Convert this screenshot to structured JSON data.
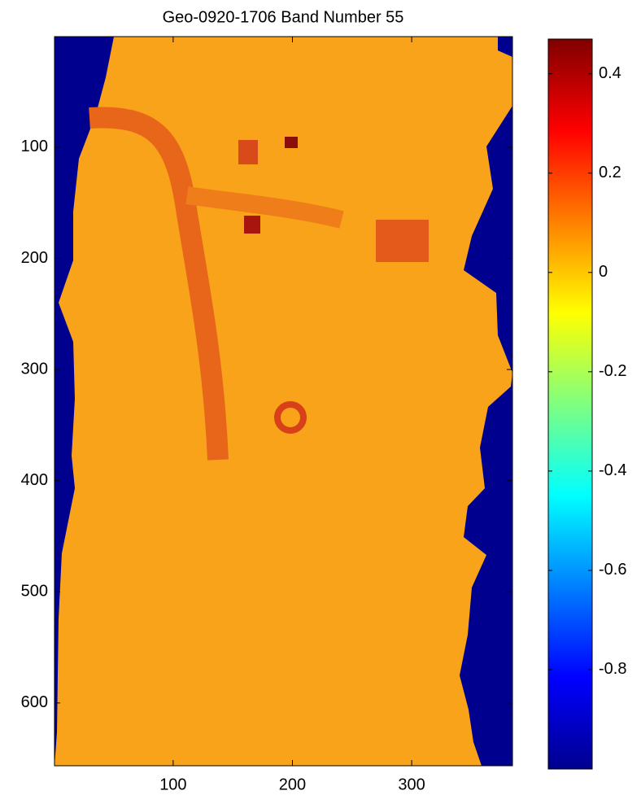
{
  "chart_data": {
    "type": "image",
    "title": "Geo-0920-1706 Band Number 55",
    "xlim": [
      0.5,
      384.5
    ],
    "xticks": [
      100,
      200,
      300
    ],
    "ylim": [
      0.5,
      656.5
    ],
    "yticks": [
      100,
      200,
      300,
      400,
      500,
      600
    ],
    "colorbar": {
      "clim": [
        -1.0,
        0.47
      ],
      "ticks": [
        0.4,
        0.2,
        0,
        -0.2,
        -0.4,
        -0.6,
        -0.8
      ]
    }
  }
}
